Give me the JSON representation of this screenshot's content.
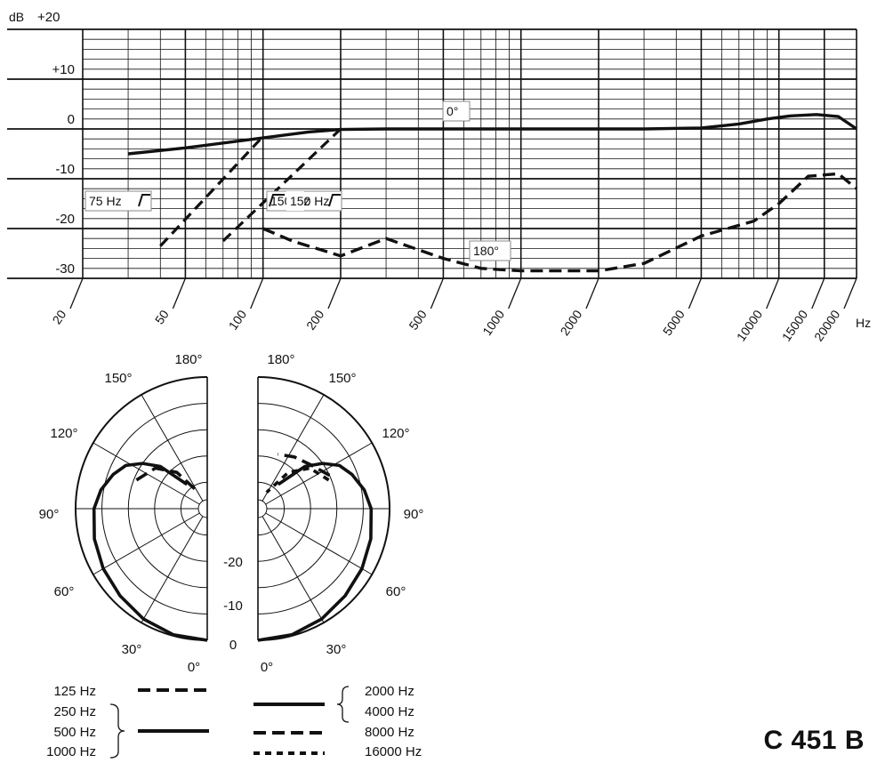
{
  "chart_data": [
    {
      "type": "line",
      "ylabel": "dB",
      "xlabel": "Hz",
      "x_scale": "log",
      "xlim": [
        20,
        20000
      ],
      "ylim": [
        -30,
        20
      ],
      "y_ticks": [
        "+20",
        "+10",
        "0",
        "-10",
        "-20",
        "-30"
      ],
      "x_ticks": [
        "20",
        "50",
        "100",
        "200",
        "500",
        "1000",
        "2000",
        "5000",
        "10000",
        "15000",
        "20000"
      ],
      "grid": true,
      "series": [
        {
          "name": "0°",
          "style": "solid",
          "x": [
            30,
            50,
            100,
            150,
            200,
            300,
            500,
            1000,
            2000,
            3000,
            5000,
            7000,
            9000,
            11000,
            14000,
            17000,
            19000,
            20000
          ],
          "y": [
            -5,
            -3.8,
            -1.8,
            -0.6,
            -0.1,
            0,
            0,
            0,
            0,
            0,
            0.2,
            1,
            2,
            2.6,
            2.9,
            2.5,
            0.8,
            0
          ]
        },
        {
          "name": "180°",
          "style": "dashed",
          "x": [
            100,
            130,
            200,
            300,
            500,
            700,
            1000,
            2000,
            3000,
            5000,
            8000,
            10000,
            13000,
            17000,
            20000
          ],
          "y": [
            -20,
            -22.5,
            -25.5,
            -22,
            -26,
            -28,
            -28.5,
            -28.5,
            -27,
            -21.5,
            -18.5,
            -15,
            -9.5,
            -9,
            -12
          ]
        }
      ],
      "annotations": {
        "low_cut_75": {
          "label": "75 Hz",
          "x": [
            40,
            100
          ],
          "y": [
            -23.5,
            -1.5
          ]
        },
        "low_cut_150": {
          "label": "150 Hz",
          "x": [
            70,
            200
          ],
          "y": [
            -22.5,
            0
          ]
        },
        "label_0deg": "0°",
        "label_180deg": "180°"
      }
    },
    {
      "type": "polar",
      "angle_labels": [
        "0°",
        "30°",
        "60°",
        "90°",
        "120°",
        "150°",
        "180°"
      ],
      "radial_labels": [
        "0",
        "-10",
        "-20"
      ],
      "rlim": [
        -25,
        0
      ],
      "legend_left": [
        {
          "label": "125 Hz",
          "style": "dashed"
        },
        {
          "label": "250 Hz",
          "style": "solid"
        },
        {
          "label": "500 Hz",
          "style": "solid"
        },
        {
          "label": "1000 Hz",
          "style": "solid"
        }
      ],
      "legend_right": [
        {
          "label": "2000 Hz",
          "style": "solid"
        },
        {
          "label": "4000 Hz",
          "style": "solid"
        },
        {
          "label": "8000 Hz",
          "style": "dashed"
        },
        {
          "label": "16000 Hz",
          "style": "dotted"
        }
      ],
      "series_left": [
        {
          "name": "125 Hz",
          "style": "dashed",
          "angles": [
            112,
            128,
            140,
            152
          ],
          "dB": [
            -10.5,
            -12.5,
            -16,
            -21.5
          ]
        },
        {
          "name": "250-1000 Hz",
          "style": "solid",
          "angles": [
            0,
            15,
            30,
            45,
            60,
            75,
            90,
            100,
            110,
            118,
            125,
            132,
            140
          ],
          "dB": [
            0,
            -0.2,
            -0.8,
            -1.6,
            -2.2,
            -2.8,
            -3.5,
            -4.5,
            -6,
            -7.5,
            -10,
            -13,
            -19
          ]
        }
      ],
      "series_right": [
        {
          "name": "2000/4000 Hz",
          "style": "solid",
          "angles": [
            0,
            15,
            30,
            45,
            60,
            75,
            90,
            100,
            110,
            118,
            125,
            132,
            140
          ],
          "dB": [
            0,
            -0.2,
            -0.8,
            -1.6,
            -2.2,
            -2.8,
            -3.5,
            -4.5,
            -6,
            -7.5,
            -10,
            -13,
            -19
          ]
        },
        {
          "name": "8000 Hz",
          "style": "dashed",
          "angles": [
            115,
            130,
            145,
            160
          ],
          "dB": [
            -10,
            -12,
            -13,
            -14
          ]
        },
        {
          "name": "16000 Hz",
          "style": "dotted",
          "angles": [
            112,
            128,
            140,
            152
          ],
          "dB": [
            -10.5,
            -12.5,
            -16,
            -21.5
          ]
        }
      ]
    }
  ],
  "model": "C 451 B"
}
